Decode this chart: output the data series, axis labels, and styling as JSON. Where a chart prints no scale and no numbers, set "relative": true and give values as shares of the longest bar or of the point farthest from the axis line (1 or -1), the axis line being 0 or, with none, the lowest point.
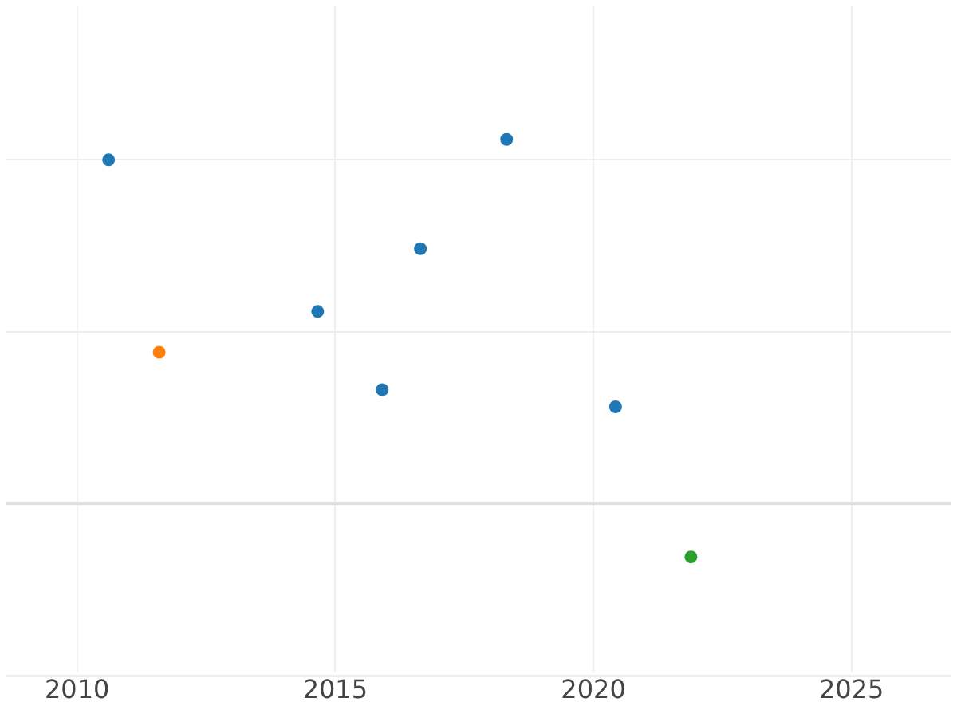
{
  "chart_data": {
    "type": "scatter",
    "relative": true,
    "grid": true,
    "legend": false,
    "marker": "circle",
    "xlim": [
      2008.63,
      2026.92
    ],
    "xticks": [
      2010,
      2015,
      2020,
      2025
    ],
    "x": [
      2010.61,
      2011.59,
      2014.66,
      2015.91,
      2016.65,
      2018.32,
      2020.43,
      2021.89
    ],
    "series": [
      {
        "colors": [
          "#1f77b4",
          "#ff7f0e",
          "#1f77b4",
          "#1f77b4",
          "#1f77b4",
          "#1f77b4",
          "#1f77b4",
          "#2ca02c"
        ],
        "values": [
          0.944,
          0.416,
          0.528,
          0.313,
          0.7,
          1,
          0.266,
          -0.146
        ]
      }
    ]
  }
}
